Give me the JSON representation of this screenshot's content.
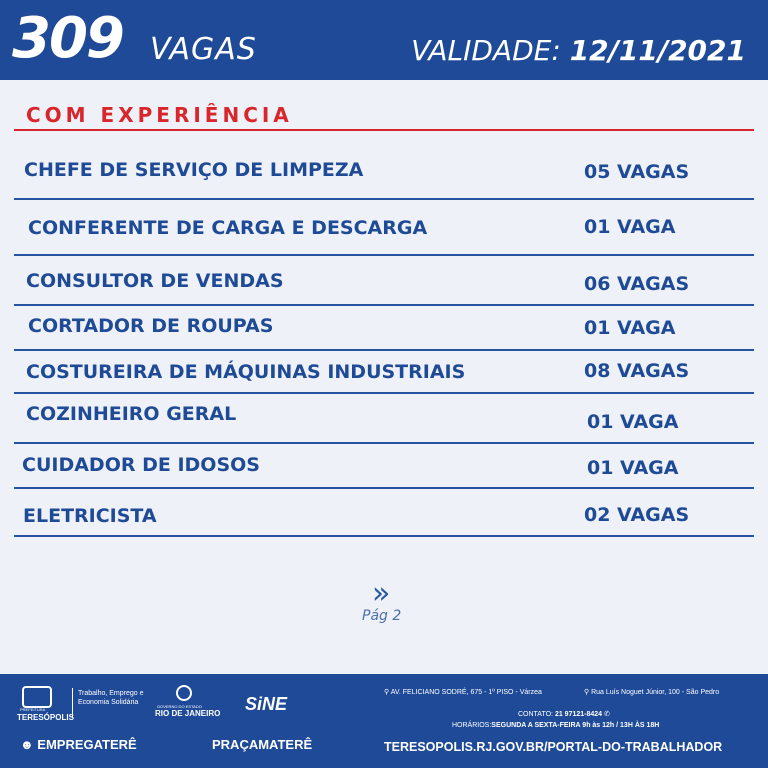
{
  "header": {
    "count": "309",
    "count_label": "VAGAS",
    "validity_label": "VALIDADE:",
    "validity_date": "12/11/2021"
  },
  "section_title": "COM EXPERIÊNCIA",
  "jobs": [
    {
      "title": "CHEFE DE SERVIÇO DE LIMPEZA",
      "vacancies": "05 VAGAS"
    },
    {
      "title": "CONFERENTE DE CARGA E DESCARGA",
      "vacancies": "01 VAGA"
    },
    {
      "title": "CONSULTOR DE VENDAS",
      "vacancies": "06 VAGAS"
    },
    {
      "title": "CORTADOR DE ROUPAS",
      "vacancies": "01 VAGA"
    },
    {
      "title": "COSTUREIRA DE MÁQUINAS INDUSTRIAIS",
      "vacancies": "08 VAGAS"
    },
    {
      "title": "COZINHEIRO GERAL",
      "vacancies": "01 VAGA"
    },
    {
      "title": "CUIDADOR DE IDOSOS",
      "vacancies": "01 VAGA"
    },
    {
      "title": "ELETRICISTA",
      "vacancies": "02 VAGAS"
    }
  ],
  "page": {
    "label": "Pág 2"
  },
  "footer": {
    "logo_pref": "TERESÓPOLIS",
    "logo_pref_small": "PREFEITURA",
    "secretaria": "Trabalho, Emprego e Economia Solidária",
    "logo_rj_small": "GOVERNO DO ESTADO",
    "logo_rj": "RIO DE JANEIRO",
    "logo_sine": "SiNE",
    "logo_empregatere": "EMPREGATERÊ",
    "logo_pracamatere": "PRAÇAMATERÊ",
    "address1": "AV. FELICIANO SODRÉ, 675 - 1º PISO - Várzea",
    "address2": "Rua Luís Noguet Júnior, 100 - São Pedro",
    "contact_label": "CONTATO:",
    "contact_number": "21 97121-8424",
    "hours_label": "HORÁRIOS:",
    "hours": "SEGUNDA A SEXTA-FEIRA  9h às 12h / 13H ÀS 18H",
    "website": "TERESOPOLIS.RJ.GOV.BR/PORTAL-DO-TRABALHADOR"
  }
}
